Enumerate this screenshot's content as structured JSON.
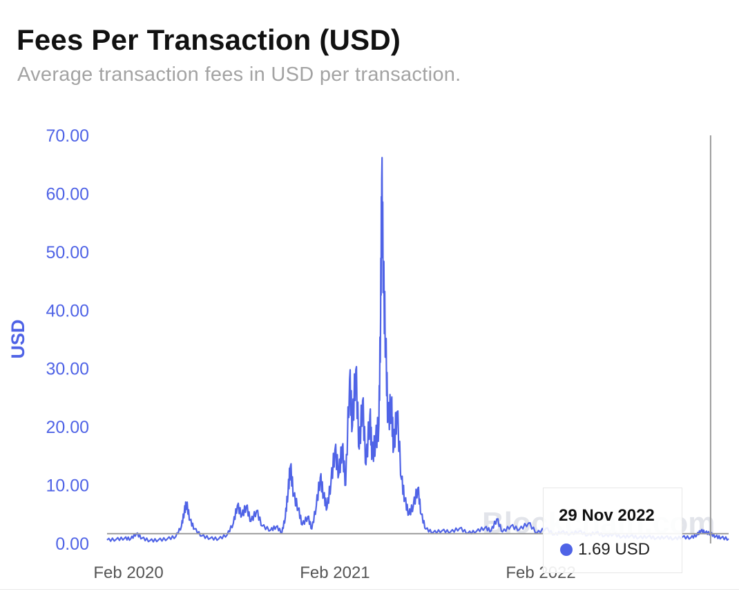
{
  "header": {
    "title": "Fees Per Transaction (USD)",
    "subtitle": "Average transaction fees in USD per transaction."
  },
  "chart_data": {
    "type": "line",
    "title": "Fees Per Transaction (USD)",
    "subtitle": "Average transaction fees in USD per transaction.",
    "ylabel": "USD",
    "xlabel": "",
    "ylim": [
      0,
      70
    ],
    "yticks": [
      "0.00",
      "10.00",
      "20.00",
      "30.00",
      "40.00",
      "50.00",
      "60.00",
      "70.00"
    ],
    "xticks": [
      "Feb 2020",
      "Feb 2021",
      "Feb 2022"
    ],
    "xtick_dates": [
      "2020-02-01",
      "2021-02-01",
      "2022-02-01"
    ],
    "xlim": [
      "2019-12-25",
      "2022-12-31"
    ],
    "grid": false,
    "color": "#4f63e6",
    "series": [
      {
        "name": "",
        "points": [
          [
            "2019-12-25",
            0.6
          ],
          [
            "2020-01-10",
            0.7
          ],
          [
            "2020-01-25",
            0.9
          ],
          [
            "2020-02-05",
            0.8
          ],
          [
            "2020-02-15",
            1.7
          ],
          [
            "2020-02-25",
            0.9
          ],
          [
            "2020-03-10",
            0.5
          ],
          [
            "2020-03-25",
            0.6
          ],
          [
            "2020-04-10",
            0.8
          ],
          [
            "2020-04-25",
            1.2
          ],
          [
            "2020-05-05",
            3.0
          ],
          [
            "2020-05-10",
            5.5
          ],
          [
            "2020-05-14",
            6.9
          ],
          [
            "2020-05-20",
            4.0
          ],
          [
            "2020-05-28",
            2.5
          ],
          [
            "2020-06-10",
            1.3
          ],
          [
            "2020-06-25",
            0.9
          ],
          [
            "2020-07-10",
            0.8
          ],
          [
            "2020-07-25",
            1.5
          ],
          [
            "2020-08-05",
            3.5
          ],
          [
            "2020-08-12",
            6.5
          ],
          [
            "2020-08-20",
            4.8
          ],
          [
            "2020-08-28",
            6.4
          ],
          [
            "2020-09-05",
            3.8
          ],
          [
            "2020-09-15",
            5.6
          ],
          [
            "2020-09-25",
            3.0
          ],
          [
            "2020-10-10",
            2.3
          ],
          [
            "2020-10-20",
            2.9
          ],
          [
            "2020-10-30",
            1.9
          ],
          [
            "2020-11-05",
            4.5
          ],
          [
            "2020-11-10",
            9.0
          ],
          [
            "2020-11-14",
            13.2
          ],
          [
            "2020-11-20",
            8.2
          ],
          [
            "2020-11-28",
            6.0
          ],
          [
            "2020-12-05",
            3.2
          ],
          [
            "2020-12-15",
            4.6
          ],
          [
            "2020-12-22",
            2.5
          ],
          [
            "2020-12-30",
            6.5
          ],
          [
            "2021-01-06",
            11.3
          ],
          [
            "2021-01-12",
            8.2
          ],
          [
            "2021-01-18",
            6.1
          ],
          [
            "2021-01-25",
            10.5
          ],
          [
            "2021-02-01",
            16.0
          ],
          [
            "2021-02-08",
            12.0
          ],
          [
            "2021-02-14",
            16.6
          ],
          [
            "2021-02-20",
            10.0
          ],
          [
            "2021-02-27",
            28.2
          ],
          [
            "2021-03-04",
            20.2
          ],
          [
            "2021-03-10",
            29.8
          ],
          [
            "2021-03-16",
            16.2
          ],
          [
            "2021-03-22",
            24.5
          ],
          [
            "2021-03-28",
            13.5
          ],
          [
            "2021-04-04",
            22.0
          ],
          [
            "2021-04-08",
            15.0
          ],
          [
            "2021-04-14",
            17.5
          ],
          [
            "2021-04-20",
            20.5
          ],
          [
            "2021-04-23",
            39.0
          ],
          [
            "2021-04-25",
            62.5
          ],
          [
            "2021-04-28",
            45.5
          ],
          [
            "2021-05-02",
            34.0
          ],
          [
            "2021-05-06",
            21.0
          ],
          [
            "2021-05-12",
            24.0
          ],
          [
            "2021-05-16",
            16.2
          ],
          [
            "2021-05-22",
            22.6
          ],
          [
            "2021-05-30",
            11.0
          ],
          [
            "2021-06-05",
            7.5
          ],
          [
            "2021-06-12",
            5.0
          ],
          [
            "2021-06-20",
            6.5
          ],
          [
            "2021-06-28",
            9.5
          ],
          [
            "2021-07-04",
            5.0
          ],
          [
            "2021-07-12",
            2.5
          ],
          [
            "2021-07-25",
            1.9
          ],
          [
            "2021-08-10",
            2.2
          ],
          [
            "2021-08-25",
            2.0
          ],
          [
            "2021-09-10",
            2.6
          ],
          [
            "2021-09-25",
            1.8
          ],
          [
            "2021-10-10",
            2.1
          ],
          [
            "2021-10-25",
            2.7
          ],
          [
            "2021-11-05",
            2.2
          ],
          [
            "2021-11-15",
            4.2
          ],
          [
            "2021-11-25",
            2.0
          ],
          [
            "2021-12-10",
            3.0
          ],
          [
            "2021-12-25",
            2.4
          ],
          [
            "2022-01-10",
            3.5
          ],
          [
            "2022-01-25",
            1.8
          ],
          [
            "2022-02-10",
            2.6
          ],
          [
            "2022-02-25",
            1.5
          ],
          [
            "2022-03-10",
            2.0
          ],
          [
            "2022-03-25",
            1.6
          ],
          [
            "2022-04-10",
            2.1
          ],
          [
            "2022-04-25",
            1.4
          ],
          [
            "2022-05-10",
            1.9
          ],
          [
            "2022-05-25",
            1.3
          ],
          [
            "2022-06-10",
            1.6
          ],
          [
            "2022-06-25",
            1.1
          ],
          [
            "2022-07-10",
            1.3
          ],
          [
            "2022-07-25",
            1.0
          ],
          [
            "2022-08-10",
            1.2
          ],
          [
            "2022-08-25",
            0.9
          ],
          [
            "2022-09-10",
            1.1
          ],
          [
            "2022-09-25",
            0.8
          ],
          [
            "2022-10-10",
            1.1
          ],
          [
            "2022-10-25",
            1.0
          ],
          [
            "2022-11-05",
            1.5
          ],
          [
            "2022-11-12",
            2.2
          ],
          [
            "2022-11-20",
            1.9
          ],
          [
            "2022-11-29",
            1.69
          ],
          [
            "2022-12-08",
            1.2
          ],
          [
            "2022-12-18",
            1.0
          ],
          [
            "2022-12-31",
            0.8
          ]
        ]
      }
    ],
    "crosshair": {
      "date": "2022-11-29",
      "value": 1.69
    },
    "tooltip": {
      "date_label": "29 Nov 2022",
      "value_label": "1.69 USD"
    },
    "watermark": "Blockchain.com"
  }
}
